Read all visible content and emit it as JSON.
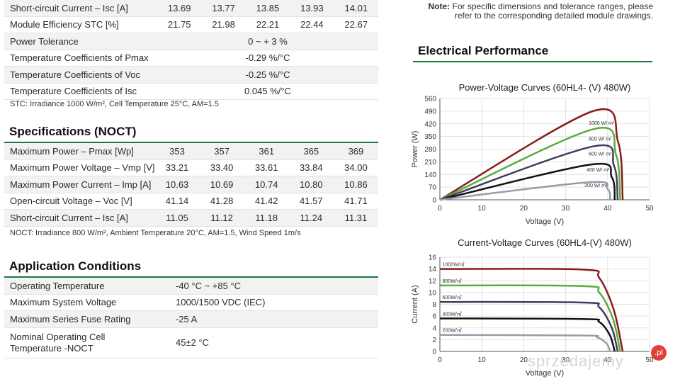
{
  "stc_rows": [
    {
      "label": "Short-circuit Current – Isc [A]",
      "values": [
        "13.69",
        "13.77",
        "13.85",
        "13.93",
        "14.01"
      ]
    },
    {
      "label": "Module Efficiency STC [%]",
      "values": [
        "21.75",
        "21.98",
        "22.21",
        "22.44",
        "22.67"
      ]
    },
    {
      "label": "Power Tolerance",
      "span": "0 ~ + 3 %"
    },
    {
      "label": "Temperature Coefficients of Pmax",
      "span": "-0.29 %/°C"
    },
    {
      "label": "Temperature Coefficients of Voc",
      "span": "-0.25 %/°C"
    },
    {
      "label": "Temperature Coefficients of Isc",
      "span": "0.045 %/°C"
    }
  ],
  "stc_note": "STC: Irradiance 1000 W/m², Cell Temperature 25°C, AM=1.5",
  "noct_title": "Specifications (NOCT)",
  "noct_rows": [
    {
      "label": "Maximum Power – Pmax [Wp]",
      "values": [
        "353",
        "357",
        "361",
        "365",
        "369"
      ]
    },
    {
      "label": "Maximum Power Voltage – Vmp [V]",
      "values": [
        "33.21",
        "33.40",
        "33.61",
        "33.84",
        "34.00"
      ]
    },
    {
      "label": "Maximum Power Current – Imp [A]",
      "values": [
        "10.63",
        "10.69",
        "10.74",
        "10.80",
        "10.86"
      ]
    },
    {
      "label": "Open-circuit Voltage – Voc [V]",
      "values": [
        "41.14",
        "41.28",
        "41.42",
        "41.57",
        "41.71"
      ]
    },
    {
      "label": "Short-circuit Current – Isc [A]",
      "values": [
        "11.05",
        "11.12",
        "11.18",
        "11.24",
        "11.31"
      ]
    }
  ],
  "noct_note": "NOCT: Irradiance 800 W/m², Ambient Temperature 20°C, AM=1.5, Wind Speed 1m/s",
  "app_title": "Application Conditions",
  "app_rows": [
    {
      "label": "Operating Temperature",
      "value": "-40 °C ~ +85 °C"
    },
    {
      "label": "Maximum System Voltage",
      "value": "1000/1500 VDC (IEC)"
    },
    {
      "label": "Maximum Series Fuse Rating",
      "value": "-25 A"
    },
    {
      "label": "Nominal Operating Cell Temperature -NOCT",
      "label_lines": [
        "Nominal Operating Cell",
        "Temperature -NOCT"
      ],
      "value": "45±2 °C"
    }
  ],
  "note": {
    "bold": "Note:",
    "text_line1": "For specific dimensions and tolerance ranges, please",
    "text_line2": "refer to the corresponding detailed module drawings."
  },
  "electrical_title": "Electrical Performance",
  "watermark": "sprzedajemy",
  "watermark_badge": ".pl",
  "chart_data": [
    {
      "type": "line",
      "title": "Power-Voltage Curves (60HL4- (V)  480W)",
      "xlabel": "Voltage (V)",
      "ylabel": "Power (W)",
      "xlim": [
        0,
        50
      ],
      "ylim": [
        0,
        560
      ],
      "xticks": [
        "0",
        "10",
        "20",
        "30",
        "40",
        "50"
      ],
      "yticks": [
        "0",
        "70",
        "140",
        "210",
        "280",
        "350",
        "420",
        "490",
        "560"
      ],
      "series": [
        {
          "name": "1000 W/ m²",
          "color": "#8b1a1a",
          "x": [
            0,
            36.5,
            42.5,
            43.6
          ],
          "y": [
            0,
            490,
            320,
            0
          ]
        },
        {
          "name": "800 W/ m²",
          "color": "#5cab3c",
          "x": [
            0,
            36.5,
            42,
            43
          ],
          "y": [
            0,
            390,
            250,
            0
          ]
        },
        {
          "name": "600 W/ m²",
          "color": "#3d3d5c",
          "x": [
            0,
            36.5,
            41.5,
            42.4
          ],
          "y": [
            0,
            295,
            190,
            0
          ]
        },
        {
          "name": "400 W/ m²",
          "color": "#111111",
          "x": [
            0,
            36,
            41,
            41.7
          ],
          "y": [
            0,
            195,
            125,
            0
          ]
        },
        {
          "name": "200 W/ m²",
          "color": "#9a9aaa",
          "x": [
            0,
            35.5,
            40,
            40.6
          ],
          "y": [
            0,
            97,
            60,
            0
          ]
        }
      ]
    },
    {
      "type": "line",
      "title": "Current-Voltage Curves (60HL4-(V) 480W)",
      "xlabel": "Voltage (V)",
      "ylabel": "Current (A)",
      "xlim": [
        0,
        50
      ],
      "ylim": [
        0,
        16
      ],
      "xticks": [
        "0",
        "10",
        "20",
        "30",
        "40",
        "50"
      ],
      "yticks": [
        "0",
        "2",
        "4",
        "6",
        "8",
        "10",
        "12",
        "14",
        "16"
      ],
      "series": [
        {
          "name": "1000W/㎡",
          "color": "#8b1a1a",
          "x": [
            0,
            34,
            38,
            41.5,
            43.6
          ],
          "y": [
            14,
            13.9,
            12.5,
            7,
            0
          ]
        },
        {
          "name": "800W/㎡",
          "color": "#5cab3c",
          "x": [
            0,
            34,
            38,
            41.3,
            43
          ],
          "y": [
            11.2,
            11.1,
            10,
            5.5,
            0
          ]
        },
        {
          "name": "600W/㎡",
          "color": "#3d3d5c",
          "x": [
            0,
            34,
            38,
            41,
            42.4
          ],
          "y": [
            8.4,
            8.3,
            7.5,
            4,
            0
          ]
        },
        {
          "name": "400W/㎡",
          "color": "#111111",
          "x": [
            0,
            34,
            38,
            40.5,
            41.7
          ],
          "y": [
            5.6,
            5.5,
            5,
            2.8,
            0
          ]
        },
        {
          "name": "200W/㎡",
          "color": "#9a9aaa",
          "x": [
            0,
            34,
            37.5,
            39.8,
            40.6
          ],
          "y": [
            2.8,
            2.7,
            2.4,
            1.3,
            0
          ]
        }
      ]
    }
  ]
}
